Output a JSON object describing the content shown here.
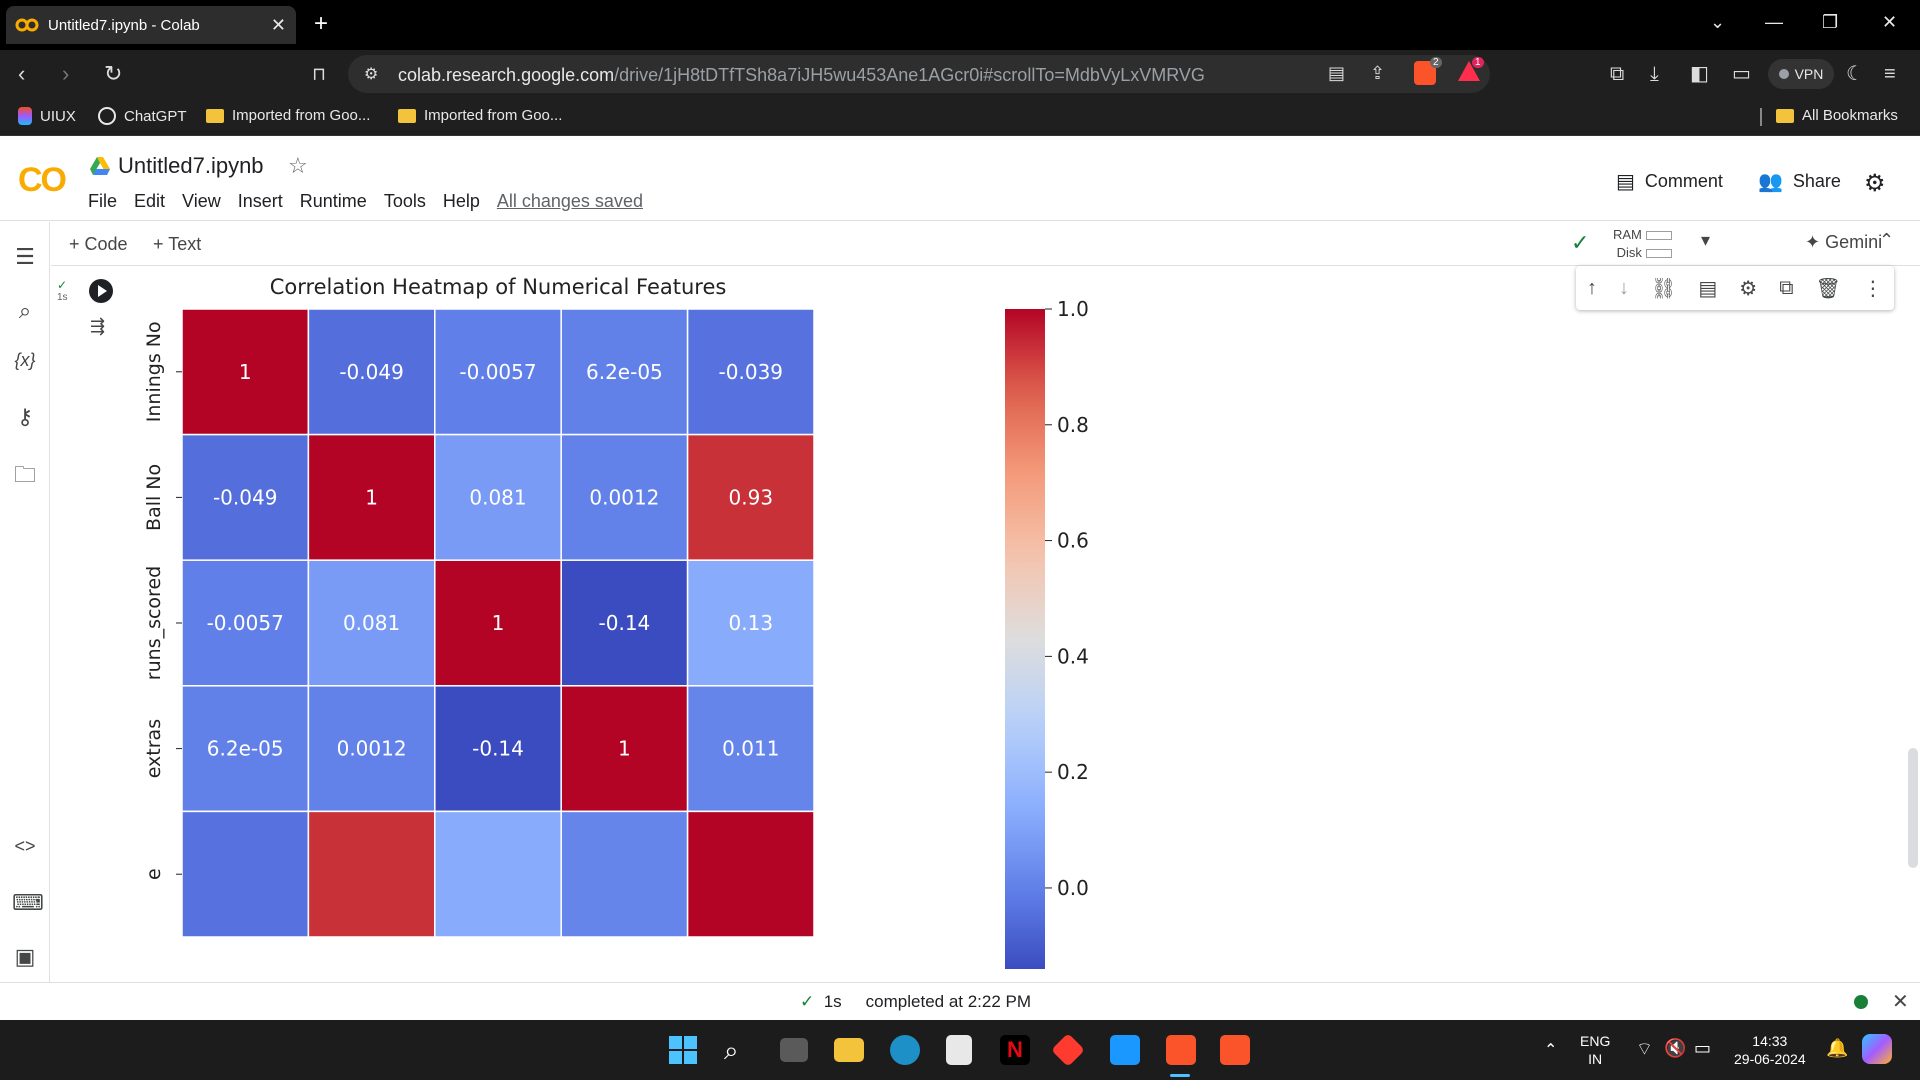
{
  "browser": {
    "tab_title": "Untitled7.ipynb - Colab",
    "url_host": "colab.research.google.com",
    "url_path": "/drive/1jH8tDTfTSh8a7iJH5wu453Ane1AGcr0i#scrollTo=MdbVyLxVMRVG",
    "vpn_label": "VPN",
    "badges": {
      "brave": "2",
      "rewards": "1"
    },
    "bookmarks": [
      {
        "label": "UIUX"
      },
      {
        "label": "ChatGPT"
      },
      {
        "label": "Imported from Goo..."
      },
      {
        "label": "Imported from Goo..."
      }
    ],
    "all_bookmarks": "All Bookmarks"
  },
  "colab": {
    "logo": "CO",
    "notebook_title": "Untitled7.ipynb",
    "menu": [
      "File",
      "Edit",
      "View",
      "Insert",
      "Runtime",
      "Tools",
      "Help"
    ],
    "saved_status": "All changes saved",
    "comment_label": "Comment",
    "share_label": "Share",
    "add_code": "+ Code",
    "add_text": "+ Text",
    "ram_label": "RAM",
    "disk_label": "Disk",
    "gemini_label": "Gemini",
    "cell_exec_time": "1s",
    "status_check": "✓",
    "status_time": "1s",
    "status_text": "completed at 2:22 PM"
  },
  "chart_data": {
    "type": "heatmap",
    "title": "Correlation Heatmap of Numerical Features",
    "row_labels": [
      "Innings No",
      "Ball No",
      "runs_scored",
      "extras",
      "e"
    ],
    "values": [
      [
        1,
        -0.049,
        -0.0057,
        6.2e-05,
        -0.039
      ],
      [
        -0.049,
        1,
        0.081,
        0.0012,
        0.93
      ],
      [
        -0.0057,
        0.081,
        1,
        -0.14,
        0.13
      ],
      [
        6.2e-05,
        0.0012,
        -0.14,
        1,
        0.011
      ],
      [
        -0.039,
        0.93,
        0.13,
        0.011,
        1
      ]
    ],
    "value_labels": [
      [
        "1",
        "-0.049",
        "-0.0057",
        "6.2e-05",
        "-0.039"
      ],
      [
        "-0.049",
        "1",
        "0.081",
        "0.0012",
        "0.93"
      ],
      [
        "-0.0057",
        "0.081",
        "1",
        "-0.14",
        "0.13"
      ],
      [
        "6.2e-05",
        "0.0012",
        "-0.14",
        "1",
        "0.011"
      ],
      [
        "",
        "",
        "",
        "",
        ""
      ]
    ],
    "colormap": "coolwarm",
    "colorbar": {
      "ticks": [
        1.0,
        0.8,
        0.6,
        0.4,
        0.2,
        0.0
      ],
      "tick_labels": [
        "1.0",
        "0.8",
        "0.6",
        "0.4",
        "0.2",
        "0.0"
      ],
      "range": [
        -0.14,
        1.0
      ]
    }
  },
  "taskbar": {
    "lang": "ENG",
    "region": "IN",
    "time": "14:33",
    "date": "29-06-2024"
  }
}
